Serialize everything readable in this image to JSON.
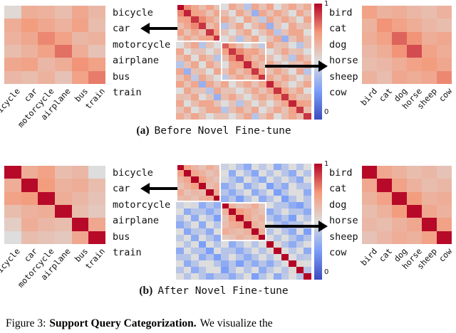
{
  "colors": {
    "background": "#ffffff",
    "arrow": "#000000",
    "highlight_box": "#ffffff",
    "text": "#111111"
  },
  "colormap": {
    "name": "coolwarm",
    "anchors": [
      [
        0,
        [
          59,
          76,
          192
        ]
      ],
      [
        0.25,
        [
          124,
          159,
          249
        ]
      ],
      [
        0.5,
        [
          221,
          221,
          221
        ]
      ],
      [
        0.75,
        [
          244,
          154,
          123
        ]
      ],
      [
        1,
        [
          180,
          4,
          38
        ]
      ]
    ]
  },
  "labels": {
    "vehicles": [
      "bicycle",
      "car",
      "motorcycle",
      "airplane",
      "bus",
      "train"
    ],
    "animals": [
      "bird",
      "cat",
      "dog",
      "horse",
      "sheep",
      "cow"
    ]
  },
  "colorbar": {
    "max": "1",
    "min": "0"
  },
  "panels": {
    "a": {
      "caption_tag": "(a)",
      "caption_text": "Before Novel Fine-tune"
    },
    "b": {
      "caption_tag": "(b)",
      "caption_text": "After Novel Fine-tune"
    }
  },
  "figure_caption": {
    "prefix": "Figure 3:",
    "bold": "Support Query Categorization.",
    "rest": "We visualize the"
  },
  "chart_data": [
    {
      "type": "heatmap",
      "name": "before-vehicles",
      "categories": [
        "bicycle",
        "car",
        "motorcycle",
        "airplane",
        "bus",
        "train"
      ],
      "vmin": 0,
      "vmax": 1,
      "values": [
        [
          0.52,
          0.68,
          0.66,
          0.62,
          0.7,
          0.64
        ],
        [
          0.68,
          0.74,
          0.7,
          0.66,
          0.72,
          0.62
        ],
        [
          0.66,
          0.7,
          0.78,
          0.72,
          0.64,
          0.66
        ],
        [
          0.62,
          0.66,
          0.72,
          0.82,
          0.68,
          0.6
        ],
        [
          0.7,
          0.72,
          0.64,
          0.68,
          0.76,
          0.72
        ],
        [
          0.64,
          0.62,
          0.66,
          0.6,
          0.72,
          0.8
        ]
      ]
    },
    {
      "type": "heatmap",
      "name": "before-all-classes",
      "vmin": 0,
      "vmax": 1,
      "highlight_blocks": [
        {
          "row": 0,
          "col": 0,
          "size": 6,
          "n": 18,
          "label": "vehicles"
        },
        {
          "row": 6,
          "col": 6,
          "size": 6,
          "n": 18,
          "label": "animals"
        }
      ],
      "values": [
        [
          1.0,
          0.78,
          0.7,
          0.62,
          0.72,
          0.6,
          0.5,
          0.7,
          0.62,
          0.4,
          0.7,
          0.6,
          0.72,
          0.5,
          0.62,
          0.7,
          0.6,
          0.68
        ],
        [
          0.78,
          0.95,
          0.72,
          0.7,
          0.6,
          0.7,
          0.62,
          0.5,
          0.7,
          0.6,
          0.32,
          0.7,
          0.6,
          0.7,
          0.62,
          0.5,
          0.7,
          0.6
        ],
        [
          0.7,
          0.72,
          0.92,
          0.78,
          0.7,
          0.62,
          0.7,
          0.6,
          0.5,
          0.7,
          0.6,
          0.42,
          0.7,
          0.6,
          0.7,
          0.62,
          0.5,
          0.7
        ],
        [
          0.62,
          0.7,
          0.78,
          0.92,
          0.62,
          0.7,
          0.4,
          0.6,
          0.7,
          0.5,
          0.62,
          0.7,
          0.32,
          0.6,
          0.5,
          0.7,
          0.6,
          0.62
        ],
        [
          0.72,
          0.6,
          0.7,
          0.62,
          0.92,
          0.72,
          0.6,
          0.5,
          0.62,
          0.7,
          0.5,
          0.6,
          0.7,
          0.4,
          0.6,
          0.7,
          0.7,
          0.5
        ],
        [
          0.6,
          0.7,
          0.62,
          0.7,
          0.72,
          0.92,
          0.5,
          0.6,
          0.4,
          0.6,
          0.7,
          0.5,
          0.6,
          0.7,
          0.32,
          0.6,
          0.7,
          0.6
        ],
        [
          0.5,
          0.62,
          0.7,
          0.4,
          0.6,
          0.5,
          0.85,
          0.72,
          0.62,
          0.5,
          0.6,
          0.42,
          0.7,
          0.6,
          0.62,
          0.5,
          0.4,
          0.6
        ],
        [
          0.7,
          0.5,
          0.6,
          0.6,
          0.5,
          0.6,
          0.72,
          0.92,
          0.78,
          0.7,
          0.72,
          0.62,
          0.5,
          0.6,
          0.7,
          0.6,
          0.62,
          0.5
        ],
        [
          0.62,
          0.7,
          0.5,
          0.7,
          0.62,
          0.4,
          0.62,
          0.78,
          0.92,
          0.72,
          0.62,
          0.7,
          0.62,
          0.5,
          0.6,
          0.4,
          0.7,
          0.6
        ],
        [
          0.4,
          0.6,
          0.7,
          0.5,
          0.7,
          0.6,
          0.5,
          0.7,
          0.72,
          0.95,
          0.7,
          0.62,
          0.7,
          0.6,
          0.5,
          0.62,
          0.6,
          0.7
        ],
        [
          0.7,
          0.32,
          0.6,
          0.62,
          0.5,
          0.7,
          0.6,
          0.72,
          0.62,
          0.7,
          0.92,
          0.72,
          0.6,
          0.7,
          0.62,
          0.5,
          0.7,
          0.4
        ],
        [
          0.6,
          0.7,
          0.42,
          0.7,
          0.6,
          0.5,
          0.42,
          0.62,
          0.7,
          0.62,
          0.72,
          0.92,
          0.7,
          0.6,
          0.7,
          0.62,
          0.5,
          0.6
        ],
        [
          0.72,
          0.6,
          0.7,
          0.32,
          0.7,
          0.6,
          0.7,
          0.5,
          0.62,
          0.7,
          0.6,
          0.7,
          0.95,
          0.7,
          0.62,
          0.5,
          0.6,
          0.7
        ],
        [
          0.5,
          0.7,
          0.6,
          0.6,
          0.4,
          0.7,
          0.6,
          0.6,
          0.5,
          0.6,
          0.7,
          0.6,
          0.7,
          0.92,
          0.72,
          0.62,
          0.7,
          0.5
        ],
        [
          0.62,
          0.6,
          0.7,
          0.5,
          0.6,
          0.32,
          0.62,
          0.7,
          0.6,
          0.5,
          0.62,
          0.7,
          0.62,
          0.72,
          0.92,
          0.7,
          0.6,
          0.62
        ],
        [
          0.7,
          0.5,
          0.62,
          0.7,
          0.7,
          0.6,
          0.5,
          0.6,
          0.4,
          0.62,
          0.5,
          0.62,
          0.5,
          0.62,
          0.7,
          0.95,
          0.72,
          0.7
        ],
        [
          0.6,
          0.7,
          0.5,
          0.6,
          0.7,
          0.7,
          0.4,
          0.62,
          0.7,
          0.6,
          0.7,
          0.5,
          0.6,
          0.7,
          0.6,
          0.72,
          0.92,
          0.62
        ],
        [
          0.68,
          0.6,
          0.7,
          0.62,
          0.5,
          0.6,
          0.6,
          0.5,
          0.6,
          0.7,
          0.4,
          0.6,
          0.7,
          0.5,
          0.62,
          0.7,
          0.62,
          0.92
        ]
      ]
    },
    {
      "type": "heatmap",
      "name": "before-animals",
      "categories": [
        "bird",
        "cat",
        "dog",
        "horse",
        "sheep",
        "cow"
      ],
      "vmin": 0,
      "vmax": 1,
      "values": [
        [
          0.72,
          0.66,
          0.68,
          0.64,
          0.62,
          0.66
        ],
        [
          0.66,
          0.76,
          0.72,
          0.68,
          0.64,
          0.62
        ],
        [
          0.68,
          0.72,
          0.84,
          0.76,
          0.68,
          0.7
        ],
        [
          0.64,
          0.68,
          0.76,
          0.88,
          0.72,
          0.68
        ],
        [
          0.62,
          0.64,
          0.68,
          0.72,
          0.74,
          0.7
        ],
        [
          0.66,
          0.62,
          0.7,
          0.68,
          0.7,
          0.78
        ]
      ]
    },
    {
      "type": "heatmap",
      "name": "after-vehicles",
      "categories": [
        "bicycle",
        "car",
        "motorcycle",
        "airplane",
        "bus",
        "train"
      ],
      "vmin": 0,
      "vmax": 1,
      "values": [
        [
          0.99,
          0.68,
          0.72,
          0.62,
          0.64,
          0.5
        ],
        [
          0.68,
          0.99,
          0.74,
          0.66,
          0.68,
          0.62
        ],
        [
          0.72,
          0.74,
          0.99,
          0.68,
          0.64,
          0.6
        ],
        [
          0.62,
          0.66,
          0.68,
          0.99,
          0.62,
          0.58
        ],
        [
          0.56,
          0.68,
          0.64,
          0.62,
          0.99,
          0.7
        ],
        [
          0.5,
          0.62,
          0.6,
          0.58,
          0.7,
          0.99
        ]
      ]
    },
    {
      "type": "heatmap",
      "name": "after-all-classes",
      "vmin": 0,
      "vmax": 1,
      "highlight_blocks": [
        {
          "row": 0,
          "col": 0,
          "size": 6,
          "n": 18,
          "label": "vehicles"
        },
        {
          "row": 6,
          "col": 6,
          "size": 6,
          "n": 18,
          "label": "animals"
        }
      ],
      "values": [
        [
          1.0,
          0.72,
          0.65,
          0.6,
          0.68,
          0.62,
          0.45,
          0.5,
          0.4,
          0.3,
          0.5,
          0.42,
          0.5,
          0.3,
          0.4,
          0.5,
          0.4,
          0.5
        ],
        [
          0.72,
          1.0,
          0.7,
          0.66,
          0.6,
          0.64,
          0.5,
          0.3,
          0.5,
          0.4,
          0.28,
          0.5,
          0.4,
          0.5,
          0.4,
          0.3,
          0.5,
          0.4
        ],
        [
          0.65,
          0.7,
          1.0,
          0.72,
          0.64,
          0.6,
          0.48,
          0.4,
          0.3,
          0.5,
          0.4,
          0.3,
          0.5,
          0.4,
          0.5,
          0.4,
          0.3,
          0.5
        ],
        [
          0.6,
          0.66,
          0.72,
          1.0,
          0.62,
          0.66,
          0.3,
          0.4,
          0.5,
          0.3,
          0.42,
          0.5,
          0.25,
          0.4,
          0.3,
          0.5,
          0.4,
          0.4
        ],
        [
          0.68,
          0.6,
          0.64,
          0.62,
          1.0,
          0.68,
          0.4,
          0.3,
          0.42,
          0.5,
          0.3,
          0.4,
          0.5,
          0.25,
          0.4,
          0.5,
          0.5,
          0.3
        ],
        [
          0.62,
          0.64,
          0.6,
          0.66,
          0.68,
          1.0,
          0.32,
          0.4,
          0.25,
          0.4,
          0.5,
          0.3,
          0.4,
          0.5,
          0.25,
          0.4,
          0.5,
          0.4
        ],
        [
          0.45,
          0.5,
          0.48,
          0.3,
          0.4,
          0.32,
          1.0,
          0.66,
          0.6,
          0.62,
          0.68,
          0.58,
          0.5,
          0.4,
          0.4,
          0.3,
          0.25,
          0.4
        ],
        [
          0.5,
          0.3,
          0.4,
          0.4,
          0.3,
          0.4,
          0.66,
          1.0,
          0.74,
          0.68,
          0.64,
          0.6,
          0.3,
          0.4,
          0.5,
          0.4,
          0.4,
          0.3
        ],
        [
          0.4,
          0.5,
          0.3,
          0.5,
          0.42,
          0.25,
          0.6,
          0.74,
          1.0,
          0.7,
          0.62,
          0.66,
          0.4,
          0.3,
          0.4,
          0.25,
          0.5,
          0.4
        ],
        [
          0.3,
          0.4,
          0.5,
          0.3,
          0.5,
          0.4,
          0.62,
          0.68,
          0.7,
          1.0,
          0.66,
          0.62,
          0.5,
          0.4,
          0.3,
          0.4,
          0.4,
          0.5
        ],
        [
          0.5,
          0.28,
          0.4,
          0.42,
          0.3,
          0.5,
          0.68,
          0.64,
          0.62,
          0.66,
          1.0,
          0.68,
          0.4,
          0.5,
          0.4,
          0.3,
          0.5,
          0.25
        ],
        [
          0.42,
          0.5,
          0.3,
          0.5,
          0.4,
          0.3,
          0.58,
          0.6,
          0.66,
          0.62,
          0.68,
          1.0,
          0.5,
          0.4,
          0.5,
          0.4,
          0.3,
          0.4
        ],
        [
          0.5,
          0.4,
          0.5,
          0.25,
          0.5,
          0.4,
          0.5,
          0.3,
          0.4,
          0.5,
          0.4,
          0.5,
          1.0,
          0.52,
          0.4,
          0.3,
          0.42,
          0.5
        ],
        [
          0.3,
          0.5,
          0.4,
          0.4,
          0.25,
          0.5,
          0.4,
          0.4,
          0.3,
          0.4,
          0.5,
          0.4,
          0.52,
          1.0,
          0.5,
          0.42,
          0.5,
          0.3
        ],
        [
          0.4,
          0.4,
          0.5,
          0.3,
          0.4,
          0.25,
          0.4,
          0.5,
          0.4,
          0.3,
          0.4,
          0.5,
          0.4,
          0.5,
          1.0,
          0.5,
          0.4,
          0.42
        ],
        [
          0.5,
          0.3,
          0.4,
          0.5,
          0.5,
          0.4,
          0.3,
          0.4,
          0.25,
          0.4,
          0.3,
          0.4,
          0.3,
          0.42,
          0.5,
          1.0,
          0.52,
          0.5
        ],
        [
          0.4,
          0.5,
          0.3,
          0.4,
          0.5,
          0.5,
          0.25,
          0.4,
          0.5,
          0.4,
          0.5,
          0.3,
          0.42,
          0.5,
          0.4,
          0.52,
          1.0,
          0.4
        ],
        [
          0.5,
          0.4,
          0.5,
          0.4,
          0.3,
          0.4,
          0.4,
          0.3,
          0.4,
          0.5,
          0.25,
          0.4,
          0.5,
          0.3,
          0.42,
          0.5,
          0.4,
          1.0
        ]
      ]
    },
    {
      "type": "heatmap",
      "name": "after-animals",
      "categories": [
        "bird",
        "cat",
        "dog",
        "horse",
        "sheep",
        "cow"
      ],
      "vmin": 0,
      "vmax": 1,
      "values": [
        [
          0.99,
          0.7,
          0.66,
          0.62,
          0.64,
          0.6
        ],
        [
          0.7,
          0.99,
          0.72,
          0.66,
          0.62,
          0.64
        ],
        [
          0.66,
          0.72,
          0.99,
          0.74,
          0.66,
          0.68
        ],
        [
          0.62,
          0.66,
          0.74,
          0.99,
          0.7,
          0.66
        ],
        [
          0.64,
          0.62,
          0.66,
          0.7,
          0.99,
          0.72
        ],
        [
          0.6,
          0.64,
          0.68,
          0.66,
          0.72,
          0.99
        ]
      ]
    }
  ]
}
